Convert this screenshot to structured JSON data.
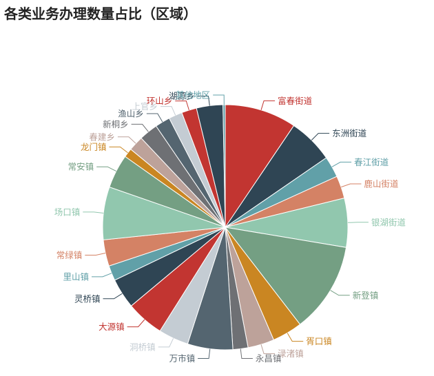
{
  "chart_data": {
    "type": "pie",
    "title": "各类业务办理数量占比（区域）",
    "slices": [
      {
        "name": "富春街道",
        "value": 9.5,
        "color": "#c23531"
      },
      {
        "name": "东洲街道",
        "value": 6.0,
        "color": "#2f4554"
      },
      {
        "name": "春江街道",
        "value": 2.8,
        "color": "#61a0a8"
      },
      {
        "name": "鹿山街道",
        "value": 3.0,
        "color": "#d48265"
      },
      {
        "name": "银湖街道",
        "value": 6.5,
        "color": "#91c7ae"
      },
      {
        "name": "新登镇",
        "value": 12.0,
        "color": "#749f83"
      },
      {
        "name": "胥口镇",
        "value": 4.0,
        "color": "#ca8622"
      },
      {
        "name": "渌渚镇",
        "value": 3.5,
        "color": "#bda29a"
      },
      {
        "name": "永昌镇",
        "value": 2.0,
        "color": "#6e7074"
      },
      {
        "name": "万市镇",
        "value": 6.0,
        "color": "#546570"
      },
      {
        "name": "洞桥镇",
        "value": 4.0,
        "color": "#c4ccd3"
      },
      {
        "name": "大源镇",
        "value": 5.0,
        "color": "#c23531"
      },
      {
        "name": "灵桥镇",
        "value": 4.0,
        "color": "#2f4554"
      },
      {
        "name": "里山镇",
        "value": 2.0,
        "color": "#61a0a8"
      },
      {
        "name": "常绿镇",
        "value": 3.5,
        "color": "#d48265"
      },
      {
        "name": "场口镇",
        "value": 7.0,
        "color": "#91c7ae"
      },
      {
        "name": "常安镇",
        "value": 4.5,
        "color": "#749f83"
      },
      {
        "name": "龙门镇",
        "value": 1.2,
        "color": "#ca8622"
      },
      {
        "name": "春建乡",
        "value": 2.0,
        "color": "#bda29a"
      },
      {
        "name": "新桐乡",
        "value": 2.5,
        "color": "#6e7074"
      },
      {
        "name": "渔山乡",
        "value": 2.0,
        "color": "#546570"
      },
      {
        "name": "上官乡",
        "value": 1.8,
        "color": "#c4ccd3"
      },
      {
        "name": "环山乡",
        "value": 2.0,
        "color": "#c23531"
      },
      {
        "name": "湖源乡",
        "value": 3.5,
        "color": "#2f4554"
      },
      {
        "name": "其他地区",
        "value": 0.3,
        "color": "#61a0a8"
      }
    ]
  }
}
